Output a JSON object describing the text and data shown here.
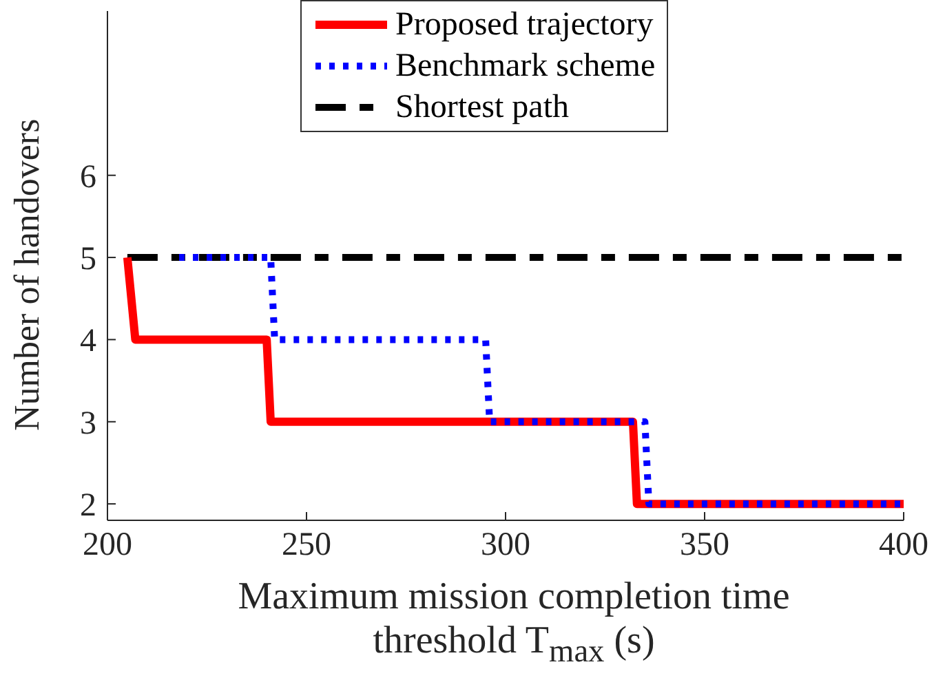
{
  "chart_data": {
    "type": "line",
    "xlabel": "Maximum mission completion time\nthreshold T$_{max}$ (s)",
    "ylabel": "Number of handovers",
    "xlim": [
      200,
      400
    ],
    "xticks": [
      200,
      250,
      300,
      350,
      400
    ],
    "ylim": [
      1.8,
      8
    ],
    "yticks": [
      2,
      3,
      4,
      5,
      6
    ],
    "legend": "top",
    "marker": "none",
    "series": [
      {
        "name": "Proposed trajectory",
        "color": "#ff0000",
        "line_style": "solid",
        "x": [
          205,
          207,
          240,
          241,
          332,
          333,
          400
        ],
        "values": [
          5,
          4,
          4,
          3,
          3,
          2,
          2
        ]
      },
      {
        "name": "Benchmark scheme",
        "color": "#0000ff",
        "line_style": "dotted",
        "x": [
          218,
          241,
          242,
          295,
          296,
          335,
          336,
          400
        ],
        "values": [
          5,
          5,
          4,
          4,
          3,
          3,
          2,
          2
        ]
      },
      {
        "name": "Shortest path",
        "color": "#000000",
        "line_style": "dashed",
        "x": [
          205,
          400
        ],
        "values": [
          5,
          5
        ]
      }
    ]
  }
}
